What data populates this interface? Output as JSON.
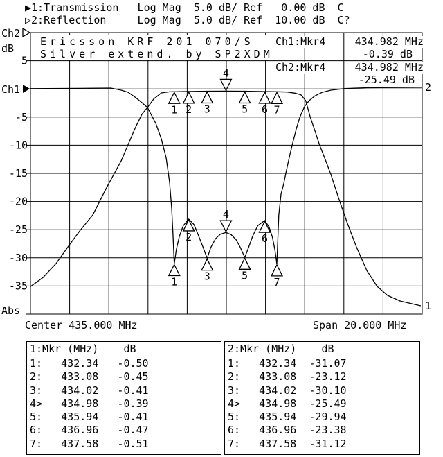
{
  "header": {
    "line1": "▶1:Transmission   Log Mag  5.0 dB/ Ref   0.00 dB  C",
    "line2": "▷2:Reflection     Log Mag  5.0 dB/ Ref  10.00 dB  C?"
  },
  "chart_data": {
    "type": "line",
    "title": "Ericsson KRF 201 070/S",
    "subtitle": "Silver extend. by SP2XDM",
    "x_axis": {
      "min_mhz": 425,
      "max_mhz": 445,
      "center_label": "Center 435.000 MHz",
      "span_label": "Span 20.000 MHz",
      "divisions": 10
    },
    "y_axis": {
      "db_per_div": 5,
      "top_db": 10,
      "bottom_db": -40,
      "divisions": 10,
      "tick_labels_db": [
        5,
        -5,
        -10,
        -15,
        -20,
        -25,
        -30,
        -35
      ],
      "left_labels": {
        "ch2": "Ch2",
        "db": "dB",
        "ch1": "Ch1",
        "abs": "Abs"
      }
    },
    "series": [
      {
        "name": "Transmission",
        "channel": "Ch1",
        "end_label": "1",
        "points": [
          [
            425.0,
            -35.1
          ],
          [
            425.64,
            -33.5
          ],
          [
            426.31,
            -31.0
          ],
          [
            427.01,
            -27.6
          ],
          [
            427.54,
            -25.1
          ],
          [
            428.18,
            -22.4
          ],
          [
            428.89,
            -17.5
          ],
          [
            429.63,
            -12.8
          ],
          [
            430.34,
            -7.0
          ],
          [
            430.69,
            -4.5
          ],
          [
            430.97,
            -3.3
          ],
          [
            431.29,
            -1.8
          ],
          [
            431.68,
            -0.71
          ],
          [
            432.1,
            -0.52
          ],
          [
            432.34,
            -0.5
          ],
          [
            433.08,
            -0.45
          ],
          [
            434.02,
            -0.41
          ],
          [
            434.98,
            -0.39
          ],
          [
            435.94,
            -0.41
          ],
          [
            436.96,
            -0.47
          ],
          [
            437.58,
            -0.51
          ],
          [
            438.1,
            -0.56
          ],
          [
            438.5,
            -0.75
          ],
          [
            438.81,
            -1.05
          ],
          [
            439.05,
            -2.07
          ],
          [
            439.28,
            -4.94
          ],
          [
            439.52,
            -7.4
          ],
          [
            439.75,
            -9.86
          ],
          [
            440.05,
            -12.54
          ],
          [
            440.34,
            -15.21
          ],
          [
            440.76,
            -19.68
          ],
          [
            441.18,
            -23.87
          ],
          [
            441.64,
            -28.05
          ],
          [
            442.17,
            -32.24
          ],
          [
            442.7,
            -35.07
          ],
          [
            443.23,
            -36.67
          ],
          [
            443.87,
            -37.66
          ],
          [
            444.47,
            -38.15
          ],
          [
            444.93,
            -38.52
          ]
        ]
      },
      {
        "name": "Reflection",
        "channel": "Ch2",
        "end_label": "2",
        "points": [
          [
            425.0,
            0.05
          ],
          [
            427.5,
            0.1
          ],
          [
            429.1,
            0.15
          ],
          [
            429.63,
            -0.22
          ],
          [
            429.98,
            -0.59
          ],
          [
            430.34,
            -1.45
          ],
          [
            430.69,
            -2.44
          ],
          [
            430.97,
            -3.3
          ],
          [
            431.4,
            -6.13
          ],
          [
            431.68,
            -8.84
          ],
          [
            431.93,
            -12.29
          ],
          [
            432.1,
            -16.48
          ],
          [
            432.21,
            -21.16
          ],
          [
            432.28,
            -26.08
          ],
          [
            432.34,
            -31.07
          ],
          [
            432.45,
            -28.5
          ],
          [
            432.6,
            -26.2
          ],
          [
            432.8,
            -24.3
          ],
          [
            433.08,
            -23.12
          ],
          [
            433.35,
            -24.1
          ],
          [
            433.55,
            -25.8
          ],
          [
            433.8,
            -28.0
          ],
          [
            434.02,
            -30.1
          ],
          [
            434.2,
            -28.2
          ],
          [
            434.45,
            -26.6
          ],
          [
            434.7,
            -25.8
          ],
          [
            434.98,
            -25.49
          ],
          [
            435.25,
            -25.9
          ],
          [
            435.5,
            -26.8
          ],
          [
            435.72,
            -28.2
          ],
          [
            435.94,
            -29.94
          ],
          [
            436.12,
            -28.3
          ],
          [
            436.35,
            -26.1
          ],
          [
            436.6,
            -24.3
          ],
          [
            436.96,
            -23.38
          ],
          [
            437.18,
            -24.5
          ],
          [
            437.35,
            -26.3
          ],
          [
            437.48,
            -28.6
          ],
          [
            437.58,
            -31.12
          ],
          [
            437.63,
            -26.7
          ],
          [
            437.68,
            -22.4
          ],
          [
            437.79,
            -18.7
          ],
          [
            437.93,
            -16.85
          ],
          [
            438.05,
            -14.79
          ],
          [
            438.23,
            -11.92
          ],
          [
            438.4,
            -9.46
          ],
          [
            438.58,
            -6.99
          ],
          [
            438.76,
            -4.94
          ],
          [
            439.0,
            -3.09
          ],
          [
            439.23,
            -2.07
          ],
          [
            439.52,
            -1.24
          ],
          [
            439.88,
            -0.63
          ],
          [
            440.34,
            -0.22
          ],
          [
            441.05,
            0.06
          ],
          [
            442.17,
            0.21
          ],
          [
            445.0,
            0.27
          ]
        ]
      }
    ],
    "markers": {
      "active": 4,
      "freqs_mhz": [
        432.34,
        433.08,
        434.02,
        434.98,
        435.94,
        436.96,
        437.58
      ],
      "ch1_db": [
        -0.5,
        -0.45,
        -0.41,
        -0.39,
        -0.41,
        -0.47,
        -0.51
      ],
      "ch2_db": [
        -31.07,
        -23.12,
        -30.1,
        -25.49,
        -29.94,
        -23.38,
        -31.12
      ]
    },
    "readouts": [
      {
        "label": "Ch1:Mkr4",
        "freq": "434.982 MHz",
        "value": "-0.39 dB"
      },
      {
        "label": "Ch2:Mkr4",
        "freq": "434.982 MHz",
        "value": "-25.49 dB"
      }
    ],
    "colors": {
      "trace": "#000000",
      "background": "#ffffff",
      "grid": "#000000"
    }
  },
  "tables": [
    {
      "header": "1:Mkr (MHz)    dB",
      "rows": [
        {
          "label": "1:",
          "freq": "432.34",
          "db": "-0.50"
        },
        {
          "label": "2:",
          "freq": "433.08",
          "db": "-0.45"
        },
        {
          "label": "3:",
          "freq": "434.02",
          "db": "-0.41"
        },
        {
          "label": "4>",
          "freq": "434.98",
          "db": "-0.39"
        },
        {
          "label": "5:",
          "freq": "435.94",
          "db": "-0.41"
        },
        {
          "label": "6:",
          "freq": "436.96",
          "db": "-0.47"
        },
        {
          "label": "7:",
          "freq": "437.58",
          "db": "-0.51"
        }
      ]
    },
    {
      "header": "2:Mkr (MHz)    dB",
      "rows": [
        {
          "label": "1:",
          "freq": "432.34",
          "db": "-31.07"
        },
        {
          "label": "2:",
          "freq": "433.08",
          "db": "-23.12"
        },
        {
          "label": "3:",
          "freq": "434.02",
          "db": "-30.10"
        },
        {
          "label": "4>",
          "freq": "434.98",
          "db": "-25.49"
        },
        {
          "label": "5:",
          "freq": "435.94",
          "db": "-29.94"
        },
        {
          "label": "6:",
          "freq": "436.96",
          "db": "-23.38"
        },
        {
          "label": "7:",
          "freq": "437.58",
          "db": "-31.12"
        }
      ]
    }
  ]
}
